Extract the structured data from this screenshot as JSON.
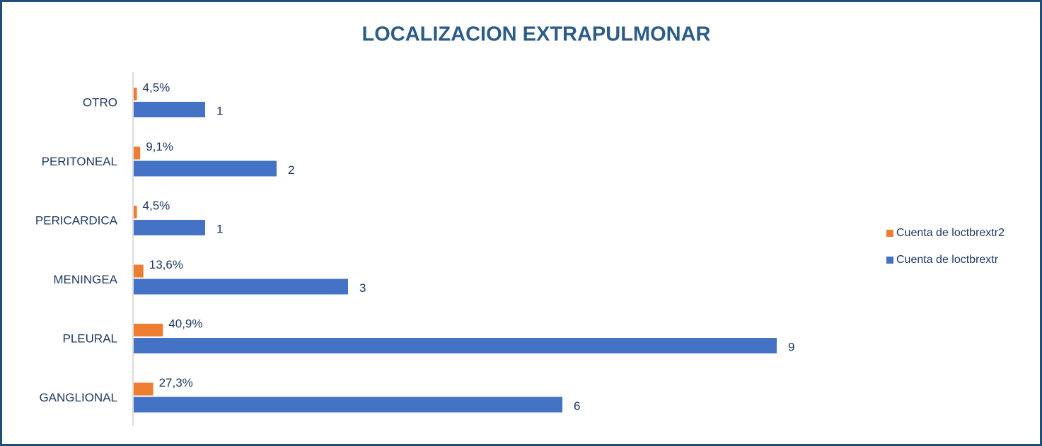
{
  "chart_data": {
    "type": "bar",
    "orientation": "horizontal",
    "title": "LOCALIZACION EXTRAPULMONAR",
    "categories": [
      "OTRO",
      "PERITONEAL",
      "PERICARDICA",
      "MENINGEA",
      "PLEURAL",
      "GANGLIONAL"
    ],
    "xlim": [
      0,
      10
    ],
    "x2lim": [
      0,
      1000
    ],
    "series": [
      {
        "name": "Cuenta de loctbrextr2",
        "color": "#ed7d31",
        "axis": "y2",
        "values": [
          4.5,
          9.1,
          4.5,
          13.6,
          40.9,
          27.3
        ],
        "value_labels": [
          "4,5%",
          "9,1%",
          "4,5%",
          "13,6%",
          "40,9%",
          "27,3%"
        ]
      },
      {
        "name": "Cuenta de loctbrextr",
        "color": "#4472c4",
        "values": [
          1,
          2,
          1,
          3,
          9,
          6
        ]
      }
    ],
    "legend": "right"
  }
}
